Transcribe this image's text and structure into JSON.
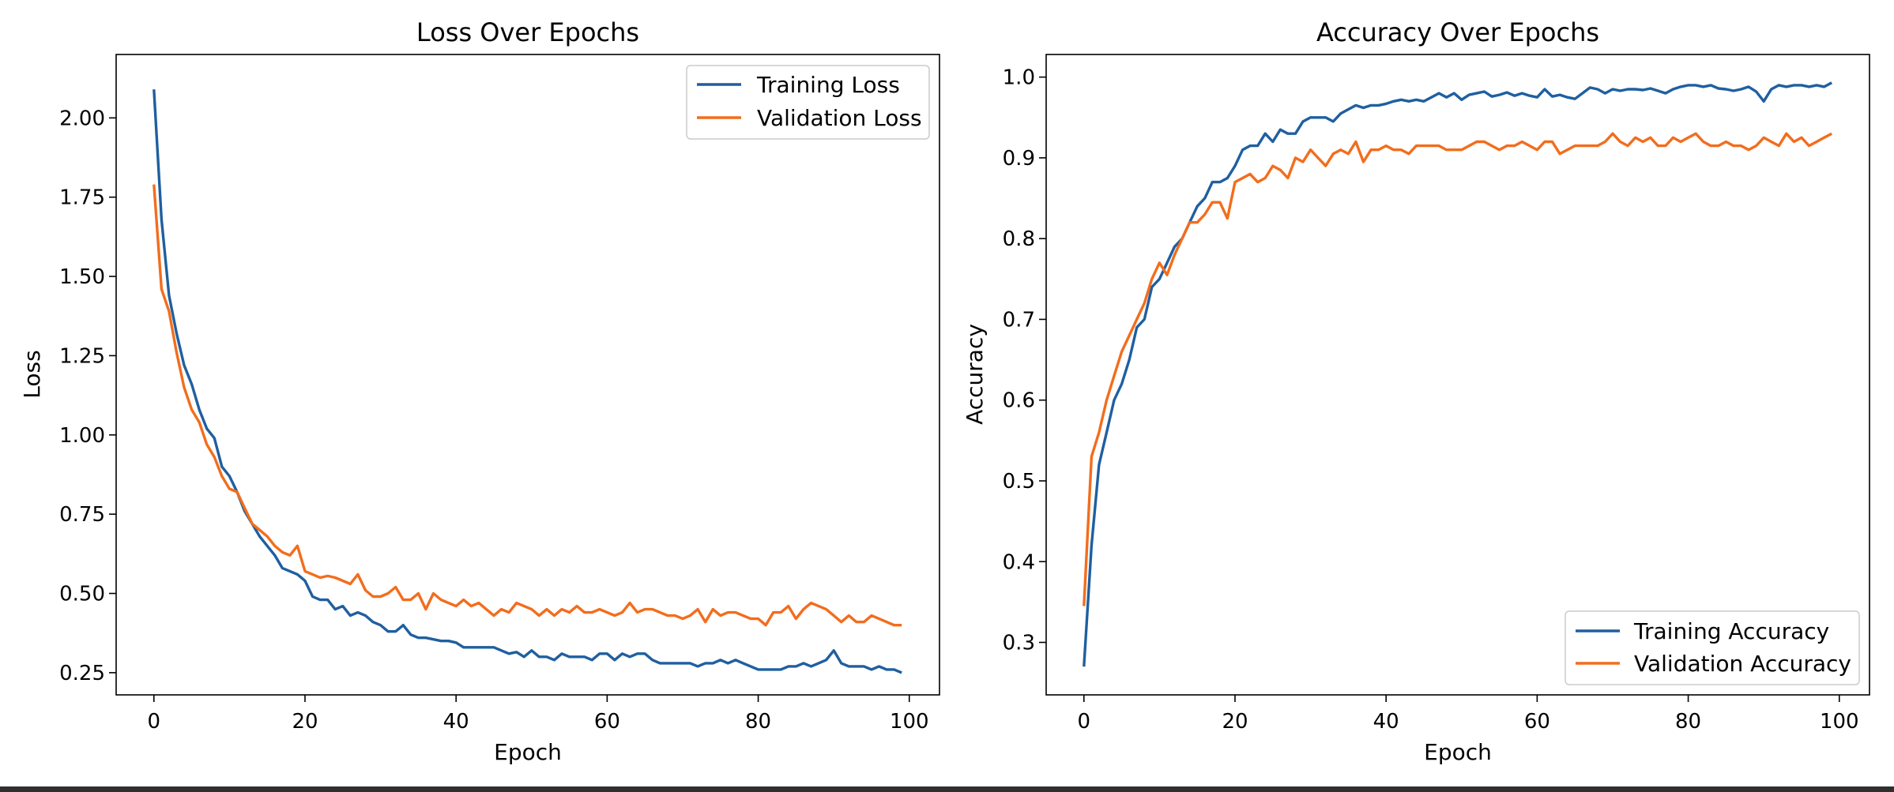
{
  "colors": {
    "training": "#1f5fa0",
    "validation": "#f26d1d"
  },
  "chart_data": [
    {
      "type": "line",
      "title": "Loss Over Epochs",
      "xlabel": "Epoch",
      "ylabel": "Loss",
      "xlim": [
        -5,
        104
      ],
      "ylim": [
        0.18,
        2.2
      ],
      "xticks": [
        0,
        20,
        40,
        60,
        80,
        100
      ],
      "yticks": [
        0.25,
        0.5,
        0.75,
        1.0,
        1.25,
        1.5,
        1.75,
        2.0
      ],
      "ytick_labels": [
        "0.25",
        "0.50",
        "0.75",
        "1.00",
        "1.25",
        "1.50",
        "1.75",
        "2.00"
      ],
      "legend_position": "top-right",
      "series": [
        {
          "name": "Training Loss",
          "color": "#1f5fa0",
          "values": [
            2.09,
            1.68,
            1.44,
            1.32,
            1.22,
            1.16,
            1.08,
            1.02,
            0.99,
            0.9,
            0.87,
            0.82,
            0.76,
            0.72,
            0.68,
            0.65,
            0.62,
            0.58,
            0.57,
            0.56,
            0.54,
            0.49,
            0.48,
            0.48,
            0.45,
            0.46,
            0.43,
            0.44,
            0.43,
            0.41,
            0.4,
            0.38,
            0.38,
            0.4,
            0.37,
            0.36,
            0.36,
            0.355,
            0.35,
            0.35,
            0.345,
            0.33,
            0.33,
            0.33,
            0.33,
            0.33,
            0.32,
            0.31,
            0.315,
            0.3,
            0.32,
            0.3,
            0.3,
            0.29,
            0.31,
            0.3,
            0.3,
            0.3,
            0.29,
            0.31,
            0.31,
            0.29,
            0.31,
            0.3,
            0.31,
            0.31,
            0.29,
            0.28,
            0.28,
            0.28,
            0.28,
            0.28,
            0.27,
            0.28,
            0.28,
            0.29,
            0.28,
            0.29,
            0.28,
            0.27,
            0.26,
            0.26,
            0.26,
            0.26,
            0.27,
            0.27,
            0.28,
            0.27,
            0.28,
            0.29,
            0.32,
            0.28,
            0.27,
            0.27,
            0.27,
            0.26,
            0.27,
            0.26,
            0.26,
            0.25
          ]
        },
        {
          "name": "Validation Loss",
          "color": "#f26d1d",
          "values": [
            1.79,
            1.46,
            1.39,
            1.26,
            1.15,
            1.08,
            1.04,
            0.97,
            0.93,
            0.87,
            0.83,
            0.82,
            0.77,
            0.72,
            0.7,
            0.68,
            0.65,
            0.63,
            0.62,
            0.65,
            0.57,
            0.56,
            0.55,
            0.555,
            0.55,
            0.54,
            0.53,
            0.56,
            0.51,
            0.49,
            0.49,
            0.5,
            0.52,
            0.48,
            0.48,
            0.5,
            0.45,
            0.5,
            0.48,
            0.47,
            0.46,
            0.48,
            0.46,
            0.47,
            0.45,
            0.43,
            0.45,
            0.44,
            0.47,
            0.46,
            0.45,
            0.43,
            0.45,
            0.43,
            0.45,
            0.44,
            0.46,
            0.44,
            0.44,
            0.45,
            0.44,
            0.43,
            0.44,
            0.47,
            0.44,
            0.45,
            0.45,
            0.44,
            0.43,
            0.43,
            0.42,
            0.43,
            0.45,
            0.41,
            0.45,
            0.43,
            0.44,
            0.44,
            0.43,
            0.42,
            0.42,
            0.4,
            0.44,
            0.44,
            0.46,
            0.42,
            0.45,
            0.47,
            0.46,
            0.45,
            0.43,
            0.41,
            0.43,
            0.41,
            0.41,
            0.43,
            0.42,
            0.41,
            0.4,
            0.4
          ]
        }
      ]
    },
    {
      "type": "line",
      "title": "Accuracy Over Epochs",
      "xlabel": "Epoch",
      "ylabel": "Accuracy",
      "xlim": [
        -5,
        104
      ],
      "ylim": [
        0.235,
        1.028
      ],
      "xticks": [
        0,
        20,
        40,
        60,
        80,
        100
      ],
      "yticks": [
        0.3,
        0.4,
        0.5,
        0.6,
        0.7,
        0.8,
        0.9,
        1.0
      ],
      "ytick_labels": [
        "0.3",
        "0.4",
        "0.5",
        "0.6",
        "0.7",
        "0.8",
        "0.9",
        "1.0"
      ],
      "legend_position": "bottom-right",
      "series": [
        {
          "name": "Training Accuracy",
          "color": "#1f5fa0",
          "values": [
            0.27,
            0.42,
            0.52,
            0.56,
            0.6,
            0.62,
            0.65,
            0.69,
            0.7,
            0.74,
            0.75,
            0.77,
            0.79,
            0.8,
            0.82,
            0.84,
            0.85,
            0.87,
            0.87,
            0.875,
            0.89,
            0.91,
            0.915,
            0.915,
            0.93,
            0.92,
            0.935,
            0.93,
            0.93,
            0.945,
            0.95,
            0.95,
            0.95,
            0.945,
            0.955,
            0.96,
            0.965,
            0.962,
            0.965,
            0.965,
            0.967,
            0.97,
            0.972,
            0.97,
            0.972,
            0.97,
            0.975,
            0.98,
            0.975,
            0.98,
            0.972,
            0.978,
            0.98,
            0.982,
            0.976,
            0.978,
            0.981,
            0.977,
            0.98,
            0.977,
            0.975,
            0.985,
            0.976,
            0.978,
            0.975,
            0.973,
            0.98,
            0.987,
            0.985,
            0.98,
            0.985,
            0.983,
            0.985,
            0.985,
            0.984,
            0.986,
            0.983,
            0.98,
            0.985,
            0.988,
            0.99,
            0.99,
            0.988,
            0.99,
            0.986,
            0.985,
            0.983,
            0.985,
            0.988,
            0.982,
            0.97,
            0.985,
            0.99,
            0.988,
            0.99,
            0.99,
            0.988,
            0.99,
            0.988,
            0.993
          ]
        },
        {
          "name": "Validation Accuracy",
          "color": "#f26d1d",
          "values": [
            0.345,
            0.53,
            0.56,
            0.6,
            0.63,
            0.66,
            0.68,
            0.7,
            0.72,
            0.75,
            0.77,
            0.755,
            0.78,
            0.8,
            0.82,
            0.82,
            0.83,
            0.845,
            0.845,
            0.825,
            0.87,
            0.875,
            0.88,
            0.87,
            0.875,
            0.89,
            0.885,
            0.875,
            0.9,
            0.895,
            0.91,
            0.9,
            0.89,
            0.905,
            0.91,
            0.905,
            0.92,
            0.895,
            0.91,
            0.91,
            0.915,
            0.91,
            0.91,
            0.905,
            0.915,
            0.915,
            0.915,
            0.915,
            0.91,
            0.91,
            0.91,
            0.915,
            0.92,
            0.92,
            0.915,
            0.91,
            0.915,
            0.915,
            0.92,
            0.915,
            0.91,
            0.92,
            0.92,
            0.905,
            0.91,
            0.915,
            0.915,
            0.915,
            0.915,
            0.92,
            0.93,
            0.92,
            0.915,
            0.925,
            0.92,
            0.925,
            0.915,
            0.915,
            0.925,
            0.92,
            0.925,
            0.93,
            0.92,
            0.915,
            0.915,
            0.92,
            0.915,
            0.915,
            0.91,
            0.915,
            0.925,
            0.92,
            0.915,
            0.93,
            0.92,
            0.925,
            0.915,
            0.92,
            0.925,
            0.93
          ]
        }
      ]
    }
  ]
}
